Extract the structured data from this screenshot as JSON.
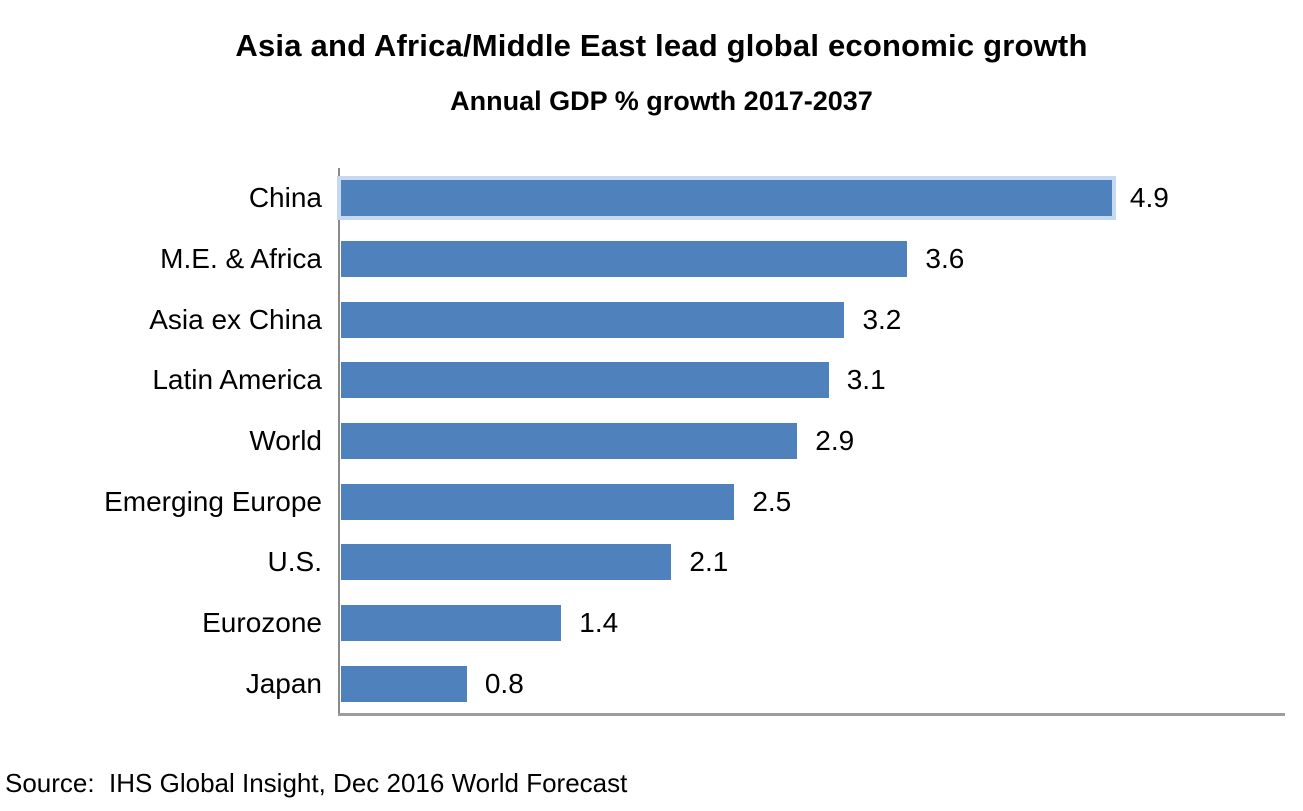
{
  "chart_data": {
    "type": "bar",
    "orientation": "horizontal",
    "title": "Asia and Africa/Middle East lead global economic growth",
    "subtitle": "Annual GDP % growth 2017-2037",
    "categories": [
      "China",
      "M.E. & Africa",
      "Asia ex China",
      "Latin America",
      "World",
      "Emerging Europe",
      "U.S.",
      "Eurozone",
      "Japan"
    ],
    "values": [
      4.9,
      3.6,
      3.2,
      3.1,
      2.9,
      2.5,
      2.1,
      1.4,
      0.8
    ],
    "value_labels": [
      "4.9",
      "3.6",
      "3.2",
      "3.1",
      "2.9",
      "2.5",
      "2.1",
      "1.4",
      "0.8"
    ],
    "xlim": [
      0,
      6
    ],
    "grid": false,
    "legend": false,
    "bar_color": "#4F81BD",
    "highlighted_bar": "China",
    "highlight_border_color": "#C6D9F1",
    "axis_color": "#9D9D9D"
  },
  "source": "Source:  IHS Global Insight, Dec 2016 World Forecast"
}
